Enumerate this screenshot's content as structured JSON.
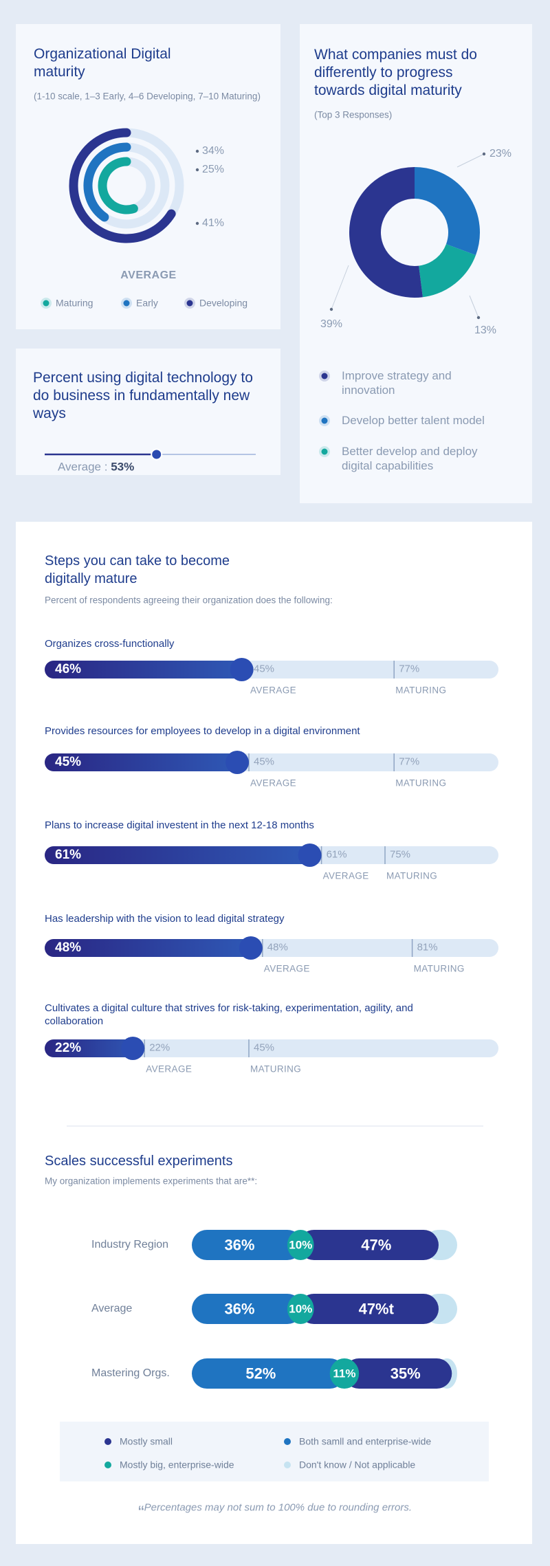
{
  "chart_data": [
    {
      "type": "radial-bar",
      "title": "Organizational Digital maturity",
      "subtitle": "(1-10 scale, 1–3 Early, 4–6 Developing, 7–10 Maturing)",
      "categories": [
        "Maturing",
        "Early",
        "Developing"
      ],
      "values": [
        34,
        25,
        41
      ],
      "value_labels": [
        "34%",
        "25%",
        "41%"
      ],
      "colors": [
        "#13a89e",
        "#1f74c1",
        "#2b3590"
      ],
      "caption": "AVERAGE"
    },
    {
      "type": "slider",
      "title": "Percent using digital technology to do business in fundamentally new ways",
      "label": "Average : ",
      "value": 53,
      "value_label": "53%",
      "xlim": [
        0,
        100
      ],
      "color": "#2b3590"
    },
    {
      "type": "donut",
      "title": "What companies must do differently to progress towards digital maturity",
      "subtitle": "(Top 3 Responses)",
      "categories": [
        "Improve strategy and innovation",
        "Develop better talent model",
        "Better develop and deploy digital capabilities"
      ],
      "values": [
        39,
        23,
        13
      ],
      "value_labels": [
        "39%",
        "23%",
        "13%"
      ],
      "colors": [
        "#2b3590",
        "#1f74c1",
        "#13a89e"
      ]
    },
    {
      "type": "bullet-bar",
      "title": "Steps you can take to become digitally mature",
      "subtitle": "Percent of respondents agreeing their organization does the following:",
      "categories": [
        "Organizes cross-functionally",
        "Provides resources for employees to develop in a digital environment",
        "Plans to increase digital investent in the next 12-18 months",
        "Has leadership with the vision to lead digital strategy",
        "Cultivates a digital culture that strives for risk-taking, experimentation, agility, and collaboration"
      ],
      "values": [
        46,
        45,
        61,
        48,
        22
      ],
      "value_labels": [
        "46%",
        "45%",
        "61%",
        "48%",
        "22%"
      ],
      "average_name": "AVERAGE",
      "average": [
        45,
        45,
        61,
        48,
        22
      ],
      "average_labels": [
        "45%",
        "45%",
        "61%",
        "48%",
        "22%"
      ],
      "maturing_name": "MATURING",
      "maturing": [
        77,
        77,
        75,
        81,
        45
      ],
      "maturing_labels": [
        "77%",
        "77%",
        "75%",
        "81%",
        "45%"
      ],
      "xlim": [
        0,
        100
      ]
    },
    {
      "type": "stacked-bar",
      "title": "Scales successful experiments",
      "subtitle": "My organization implements experiments that are**:",
      "categories": [
        "Industry Region",
        "Average",
        "Mastering Orgs."
      ],
      "xlim": [
        0,
        100
      ],
      "series": [
        {
          "name": "Both samll and enterprise-wide",
          "color": "#1f74c1",
          "values": [
            36,
            36,
            52
          ],
          "value_labels": [
            "36%",
            "36%",
            "52%"
          ]
        },
        {
          "name": "Mostly big, enterprise-wide",
          "color": "#13a89e",
          "values": [
            10,
            10,
            11
          ],
          "value_labels": [
            "10%",
            "10%",
            "11%"
          ]
        },
        {
          "name": "Mostly small",
          "color": "#2b3590",
          "values": [
            47,
            47,
            35
          ],
          "value_labels": [
            "47%",
            "47%t",
            "35%"
          ]
        },
        {
          "name": "Don't know / Not applicable",
          "color": "#c6e3f1",
          "values": [
            7,
            7,
            2
          ]
        }
      ]
    }
  ],
  "footnote_mark": "“",
  "footnote": "Percentages may not sum to 100% due to rounding errors."
}
